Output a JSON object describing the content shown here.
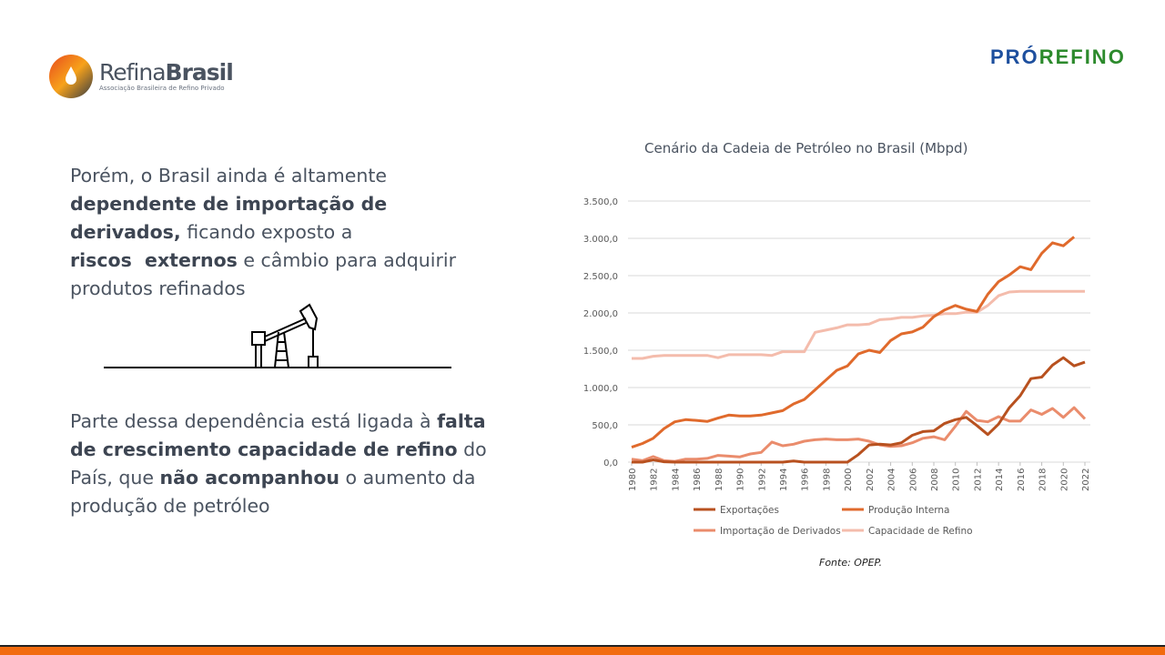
{
  "header": {
    "logo_left_name_light": "Refina",
    "logo_left_name_bold": "Brasil",
    "logo_left_sub": "Associação Brasileira de Refino Privado",
    "logo_right_a": "PRÓ",
    "logo_right_b": "REFINO"
  },
  "text1": {
    "p1": "Porém, o Brasil ainda é altamente ",
    "b1": "dependente de importação de derivados,",
    "p2": " ficando exposto a ",
    "b2": "riscos  externos",
    "p3": " e câmbio para adquirir produtos refinados"
  },
  "text2": {
    "p1": "Parte dessa dependência está ligada à ",
    "b1": "falta de crescimento capacidade de refino",
    "p2": " do País, que ",
    "b2": "não acompanhou",
    "p3": " o aumento da produção de petróleo"
  },
  "source": "Fonte: OPEP.",
  "chart_data": {
    "type": "line",
    "title": "Cenário da Cadeia de Petróleo no Brasil (Mbpd)",
    "ylim": [
      0,
      3500
    ],
    "yticks": [
      "0,0",
      "500,0",
      "1.000,0",
      "1.500,0",
      "2.000,0",
      "2.500,0",
      "3.000,0",
      "3.500,0"
    ],
    "x": [
      1980,
      1981,
      1982,
      1983,
      1984,
      1985,
      1986,
      1987,
      1988,
      1989,
      1990,
      1991,
      1992,
      1993,
      1994,
      1995,
      1996,
      1997,
      1998,
      1999,
      2000,
      2001,
      2002,
      2003,
      2004,
      2005,
      2006,
      2007,
      2008,
      2009,
      2010,
      2011,
      2012,
      2013,
      2014,
      2015,
      2016,
      2017,
      2018,
      2019,
      2020,
      2021,
      2022
    ],
    "xticks": [
      "1980",
      "1982",
      "1984",
      "1986",
      "1988",
      "1990",
      "1992",
      "1994",
      "1996",
      "1998",
      "2000",
      "2002",
      "2004",
      "2006",
      "2008",
      "2010",
      "2012",
      "2014",
      "2016",
      "2018",
      "2020",
      "2022"
    ],
    "series": [
      {
        "name": "Exportações",
        "color": "#b8511f",
        "values": [
          0,
          0,
          30,
          5,
          0,
          0,
          0,
          0,
          0,
          0,
          0,
          0,
          0,
          0,
          0,
          15,
          0,
          0,
          0,
          0,
          0,
          100,
          230,
          240,
          230,
          260,
          360,
          410,
          420,
          520,
          570,
          600,
          490,
          370,
          510,
          730,
          890,
          1120,
          1140,
          1300,
          1400,
          1290,
          1340
        ]
      },
      {
        "name": "Produção Interna",
        "color": "#e06a2c",
        "values": [
          200,
          250,
          320,
          450,
          540,
          570,
          560,
          545,
          590,
          630,
          620,
          620,
          630,
          660,
          690,
          780,
          840,
          970,
          1100,
          1230,
          1290,
          1450,
          1500,
          1470,
          1630,
          1720,
          1745,
          1810,
          1950,
          2040,
          2100,
          2050,
          2020,
          2250,
          2420,
          2510,
          2620,
          2580,
          2800,
          2940,
          2900,
          3020,
          null
        ]
      },
      {
        "name": "Importação de Derivados",
        "color": "#ea8c6c",
        "values": [
          40,
          20,
          75,
          20,
          10,
          40,
          40,
          50,
          90,
          80,
          70,
          110,
          130,
          270,
          220,
          240,
          280,
          300,
          310,
          300,
          300,
          310,
          280,
          230,
          210,
          220,
          260,
          320,
          340,
          300,
          480,
          680,
          560,
          540,
          610,
          550,
          550,
          700,
          640,
          720,
          600,
          730,
          580
        ]
      },
      {
        "name": "Capacidade de Refino",
        "color": "#f4bcac",
        "values": [
          1390,
          1390,
          1420,
          1430,
          1430,
          1430,
          1430,
          1430,
          1400,
          1440,
          1440,
          1440,
          1440,
          1430,
          1480,
          1480,
          1480,
          1740,
          1770,
          1800,
          1840,
          1840,
          1850,
          1910,
          1920,
          1940,
          1940,
          1960,
          1970,
          1990,
          1990,
          2010,
          2010,
          2100,
          2230,
          2280,
          2290,
          2290,
          2290,
          2290,
          2290,
          2290,
          2290
        ]
      }
    ]
  }
}
